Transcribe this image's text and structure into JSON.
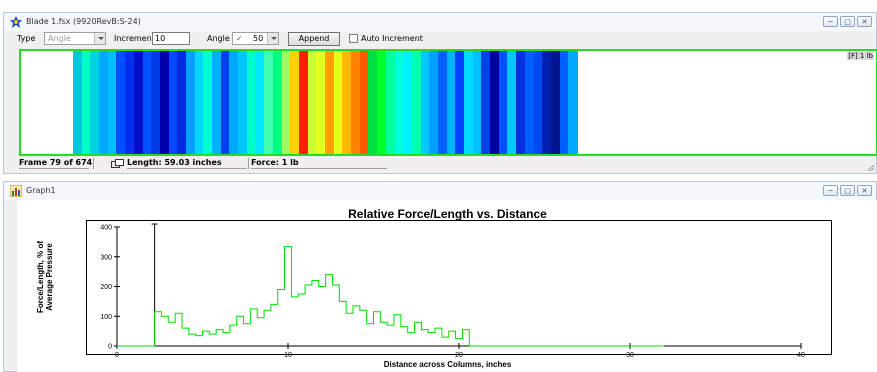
{
  "blade_window": {
    "title": "Blade 1.fsx (9920RevB:S-24)",
    "toolbar": {
      "type_label": "Type",
      "type_value": "Angle",
      "increment_label": "Increment",
      "increment_value": "10",
      "angle_label": "Angle",
      "angle_check": "✓",
      "angle_value": "50",
      "append_label": "Append",
      "auto_increment_label": "Auto Increment"
    },
    "map_tag": "[F] 1 lb",
    "status": {
      "frame": "Frame 79 of 674",
      "length": "Length: 59.03 inches",
      "force": "Force: 1 lb"
    },
    "map_strips": [
      {
        "c": "#00c8dc"
      },
      {
        "c": "#00ffc8"
      },
      {
        "c": "#00d2e6"
      },
      {
        "c": "#00aaff"
      },
      {
        "c": "#00c0ff"
      },
      {
        "c": "#0050ff"
      },
      {
        "c": "#0030ee"
      },
      {
        "c": "#0010c8"
      },
      {
        "c": "#0050ff"
      },
      {
        "c": "#003ae6"
      },
      {
        "c": "#0000aa"
      },
      {
        "c": "#0048ff"
      },
      {
        "c": "#0028dc"
      },
      {
        "c": "#00a0ff"
      },
      {
        "c": "#00d8ff"
      },
      {
        "c": "#00ffd2"
      },
      {
        "c": "#00b0ff"
      },
      {
        "c": "#0040f0"
      },
      {
        "c": "#00a8ff"
      },
      {
        "c": "#00c8ff"
      },
      {
        "c": "#00ffc8"
      },
      {
        "c": "#00e8ff"
      },
      {
        "c": "#40ffb0"
      },
      {
        "c": "#00ff80"
      },
      {
        "c": "#9bff5a"
      },
      {
        "c": "#ffd200"
      },
      {
        "c": "#ff1e00"
      },
      {
        "c": "#c8ff32"
      },
      {
        "c": "#e6ff1e"
      },
      {
        "c": "#ffa000"
      },
      {
        "c": "#e8ff14"
      },
      {
        "c": "#ffb400"
      },
      {
        "c": "#ff8200"
      },
      {
        "c": "#ff5a00"
      },
      {
        "c": "#00e040"
      },
      {
        "c": "#00ff28"
      },
      {
        "c": "#00ffa0"
      },
      {
        "c": "#00ffdc"
      },
      {
        "c": "#00f0ff"
      },
      {
        "c": "#00ffb4"
      },
      {
        "c": "#00c8ff"
      },
      {
        "c": "#00a0ff"
      },
      {
        "c": "#0060ff"
      },
      {
        "c": "#00b4ff"
      },
      {
        "c": "#0040ff"
      },
      {
        "c": "#00dcff"
      },
      {
        "c": "#00c0ff"
      },
      {
        "c": "#0040e6"
      },
      {
        "c": "#0000a0"
      },
      {
        "c": "#0050ff"
      },
      {
        "c": "#00c8ff"
      },
      {
        "c": "#0030e0"
      },
      {
        "c": "#0060ff"
      },
      {
        "c": "#0048f0"
      },
      {
        "c": "#0020b0"
      },
      {
        "c": "#00148c"
      },
      {
        "c": "#0060ff"
      },
      {
        "c": "#00a8ff"
      }
    ]
  },
  "graph_window": {
    "title": "Graph1"
  },
  "chart_data": {
    "type": "line",
    "title": "Relative Force/Length vs. Distance",
    "xlabel": "Distance across Columns, inches",
    "ylabel": [
      "Force/Length, % of",
      "Average Pressure"
    ],
    "xlim": [
      0,
      40
    ],
    "ylim": [
      0,
      400
    ],
    "xticks": [
      0,
      10,
      20,
      30,
      40
    ],
    "yticks": [
      0,
      100,
      200,
      300,
      400
    ],
    "line_color": "#00dd00",
    "spike": {
      "x": 2.2,
      "y": 410
    },
    "series": [
      {
        "step": true,
        "x": [
          0,
          2.0,
          2.2,
          2.6,
          3.0,
          3.4,
          3.8,
          4.2,
          4.6,
          5.0,
          5.4,
          5.8,
          6.2,
          6.6,
          7.0,
          7.4,
          7.8,
          8.2,
          8.6,
          9.0,
          9.4,
          9.8,
          10.2,
          10.6,
          11.0,
          11.4,
          11.8,
          12.2,
          12.6,
          13.0,
          13.4,
          13.8,
          14.2,
          14.6,
          15.0,
          15.4,
          15.8,
          16.2,
          16.6,
          17.0,
          17.4,
          17.8,
          18.2,
          18.6,
          19.0,
          19.4,
          19.8,
          20.2,
          20.6,
          21.0,
          22.0,
          32.0
        ],
        "y": [
          0,
          0,
          115,
          100,
          80,
          110,
          60,
          40,
          35,
          50,
          40,
          55,
          45,
          70,
          100,
          75,
          125,
          95,
          120,
          140,
          190,
          335,
          165,
          175,
          205,
          220,
          200,
          240,
          205,
          150,
          110,
          135,
          120,
          75,
          115,
          80,
          70,
          105,
          65,
          45,
          80,
          55,
          45,
          60,
          30,
          50,
          25,
          55,
          0,
          0,
          0,
          0
        ]
      }
    ]
  }
}
